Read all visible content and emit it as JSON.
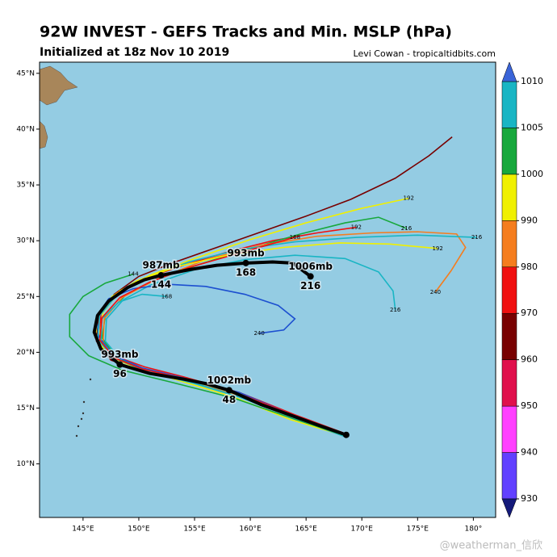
{
  "chart_data": {
    "type": "track-map",
    "title": "92W INVEST - GEFS Tracks and Min. MSLP (hPa)",
    "subtitle": "Initialized at 18z Nov 10 2019",
    "credit": "Levi Cowan - tropicaltidbits.com",
    "watermark": "@weatherman_信欣",
    "ocean_color": "#94cce3",
    "land_color": "#a8865a",
    "xlim": [
      141.1,
      182.0
    ],
    "ylim": [
      5.2,
      46.0
    ],
    "xticks": [
      {
        "value": 145,
        "label": "145°E"
      },
      {
        "value": 150,
        "label": "150°E"
      },
      {
        "value": 155,
        "label": "155°E"
      },
      {
        "value": 160,
        "label": "160°E"
      },
      {
        "value": 165,
        "label": "165°E"
      },
      {
        "value": 170,
        "label": "170°E"
      },
      {
        "value": 175,
        "label": "175°E"
      },
      {
        "value": 180,
        "label": "180°"
      }
    ],
    "yticks": [
      {
        "value": 10,
        "label": "10°N"
      },
      {
        "value": 15,
        "label": "15°N"
      },
      {
        "value": 20,
        "label": "20°N"
      },
      {
        "value": 25,
        "label": "25°N"
      },
      {
        "value": 30,
        "label": "30°N"
      },
      {
        "value": 35,
        "label": "35°N"
      },
      {
        "value": 40,
        "label": "40°N"
      },
      {
        "value": 45,
        "label": "45°N"
      }
    ],
    "colorbar": {
      "levels": [
        930,
        940,
        950,
        960,
        970,
        980,
        990,
        1000,
        1005,
        1010
      ],
      "colors": [
        "#6140ff",
        "#ff40ff",
        "#e0104c",
        "#780000",
        "#f01010",
        "#f57d1e",
        "#f0f000",
        "#18a83c",
        "#19b5c4"
      ],
      "under": "#141a7a",
      "over": "#3a64d8"
    },
    "tracks": [
      {
        "color": "#780000",
        "end_label": null,
        "lon": [
          168.6,
          164,
          159,
          154,
          150,
          147.5,
          146.2,
          146.4,
          147.8,
          150,
          153,
          157,
          161,
          165,
          169,
          173,
          176,
          178.1
        ],
        "lat": [
          12.6,
          14.2,
          16.2,
          17.6,
          18.4,
          19.3,
          21,
          23.2,
          25.2,
          26.8,
          28,
          29.4,
          30.8,
          32.2,
          33.7,
          35.6,
          37.6,
          39.3
        ]
      },
      {
        "color": "#f01010",
        "end_label": "192",
        "lon": [
          168.3,
          164,
          159,
          154,
          150.5,
          148,
          146.5,
          146.6,
          148,
          150.5,
          154,
          158,
          162,
          166,
          169.5
        ],
        "lat": [
          12.8,
          14.4,
          16.4,
          17.8,
          18.7,
          19.6,
          21.2,
          23.4,
          25.3,
          26.6,
          27.8,
          29,
          30,
          30.7,
          31.2
        ]
      },
      {
        "color": "#f0f000",
        "end_label": "192",
        "lon": [
          168.5,
          163.5,
          158.5,
          153.5,
          150,
          147.6,
          146.5,
          146.8,
          148.3,
          151,
          155,
          160,
          165,
          170,
          174.2
        ],
        "lat": [
          12.5,
          14,
          16,
          17.5,
          18.6,
          19.8,
          21.6,
          23.6,
          25.5,
          26.9,
          28.4,
          30.1,
          31.6,
          32.9,
          33.8
        ]
      },
      {
        "color": "#18a83c",
        "end_label": "216",
        "lon": [
          168.4,
          164,
          159,
          154.5,
          150.5,
          148,
          146.7,
          147,
          148.8,
          151.5,
          155.5,
          160,
          164.5,
          168.5,
          171.5,
          174
        ],
        "lat": [
          12.7,
          14.3,
          16.1,
          17.4,
          18.4,
          19.5,
          21.3,
          23.3,
          25.1,
          26.5,
          27.9,
          29.3,
          30.6,
          31.6,
          32.1,
          31.1
        ]
      },
      {
        "color": "#f57d1e",
        "end_label": "240",
        "lon": [
          168.5,
          164,
          159.5,
          155,
          151,
          148.3,
          146.8,
          146.9,
          148.5,
          151.5,
          156,
          161,
          166,
          171,
          175,
          178.5,
          179.3,
          178,
          176.6
        ],
        "lat": [
          12.6,
          14.1,
          15.9,
          17.3,
          18.2,
          19.2,
          20.9,
          23,
          24.9,
          26.5,
          28.3,
          29.6,
          30.4,
          30.7,
          30.8,
          30.6,
          29.4,
          27.3,
          25.4
        ]
      },
      {
        "color": "#19b5c4",
        "end_label": "216",
        "lon": [
          168.6,
          164.5,
          160,
          155,
          151,
          148.5,
          147,
          147.1,
          148.6,
          151,
          155,
          159.5,
          164,
          168.5,
          171.5,
          172.8,
          173
        ],
        "lat": [
          12.4,
          13.9,
          15.7,
          17.2,
          18.2,
          19.2,
          21,
          23,
          24.7,
          26,
          27.4,
          28.3,
          28.7,
          28.4,
          27.2,
          25.5,
          23.8
        ]
      },
      {
        "color": "#1c4fd0",
        "end_label": "240",
        "lon": [
          168.2,
          163.5,
          159,
          154,
          150.3,
          147.8,
          146.4,
          146.2,
          147.3,
          149.5,
          152.5,
          156,
          159.5,
          162.5,
          164,
          163,
          160.8
        ],
        "lat": [
          12.8,
          14.5,
          16.4,
          17.7,
          18.6,
          19.7,
          21.4,
          23.2,
          24.8,
          25.7,
          26.1,
          25.9,
          25.2,
          24.2,
          23,
          22,
          21.7
        ]
      },
      {
        "color": "#19b5c4",
        "end_label": "216",
        "lon": [
          168.5,
          164,
          159,
          154,
          150.2,
          147.7,
          146.3,
          146.5,
          148,
          150.5,
          154.5,
          159,
          164,
          169.5,
          175,
          180.3
        ],
        "lat": [
          12.6,
          14.2,
          16.2,
          17.6,
          18.5,
          19.5,
          21.2,
          23.3,
          25.1,
          26.6,
          28.1,
          29.2,
          29.9,
          30.3,
          30.5,
          30.3
        ]
      },
      {
        "color": "#f0f000",
        "end_label": "192",
        "lon": [
          168.4,
          163.8,
          158.8,
          153.8,
          150,
          147.4,
          146.1,
          146.3,
          147.6,
          149.8,
          153.5,
          158,
          163,
          168,
          172.5,
          176.8
        ],
        "lat": [
          12.7,
          14.3,
          16.3,
          17.7,
          18.5,
          19.6,
          21.3,
          23.2,
          25,
          26.4,
          27.7,
          28.7,
          29.4,
          29.8,
          29.7,
          29.3
        ]
      },
      {
        "color": "#18a83c",
        "end_label": "144",
        "lon": [
          168.6,
          164,
          158.5,
          153,
          148.5,
          145.5,
          143.8,
          143.8,
          145,
          147,
          149.5
        ],
        "lat": [
          12.5,
          14,
          15.9,
          17.3,
          18.4,
          19.7,
          21.4,
          23.4,
          25,
          26.2,
          27
        ]
      },
      {
        "color": "#19b5c4",
        "end_label": "168",
        "lon": [
          168.5,
          164,
          159,
          154,
          150.4,
          148,
          146.6,
          146.7,
          148.2,
          150.3,
          152.5
        ],
        "lat": [
          12.6,
          14.1,
          16,
          17.5,
          18.4,
          19.4,
          21,
          23,
          24.5,
          25.2,
          25
        ]
      },
      {
        "color": "#f01010",
        "end_label": "168",
        "lon": [
          168.4,
          164,
          159.2,
          154.2,
          150.3,
          147.8,
          146.5,
          146.7,
          148.3,
          151,
          154.5,
          158,
          161.5,
          164
        ],
        "lat": [
          12.7,
          14.3,
          16.2,
          17.6,
          18.5,
          19.5,
          21.1,
          23.1,
          24.9,
          26.3,
          27.6,
          28.6,
          29.6,
          30.3
        ]
      }
    ],
    "mean_track": {
      "color": "#000000",
      "lon": [
        168.6,
        166,
        163.8,
        161,
        158.1,
        156,
        154,
        151,
        148.3,
        146.6,
        146,
        146.3,
        147.3,
        149,
        150.5,
        152,
        154.5,
        157,
        159.6,
        162,
        163.8,
        165.4
      ],
      "lat": [
        12.6,
        13.5,
        14.3,
        15.3,
        16.6,
        17.2,
        17.6,
        18.1,
        18.9,
        20.3,
        21.8,
        23.3,
        24.6,
        25.8,
        26.5,
        26.9,
        27.4,
        27.8,
        28.0,
        28.1,
        28.0,
        26.8
      ],
      "hour_labels": [
        null,
        null,
        null,
        null,
        "48",
        null,
        null,
        null,
        "96",
        null,
        null,
        null,
        null,
        null,
        null,
        "144",
        null,
        null,
        "168",
        null,
        null,
        "216"
      ],
      "pressure_labels": [
        null,
        null,
        null,
        null,
        "1002mb",
        null,
        null,
        null,
        "993mb",
        null,
        null,
        null,
        null,
        null,
        null,
        "987mb",
        null,
        null,
        "993mb",
        null,
        null,
        "1006mb"
      ]
    }
  }
}
